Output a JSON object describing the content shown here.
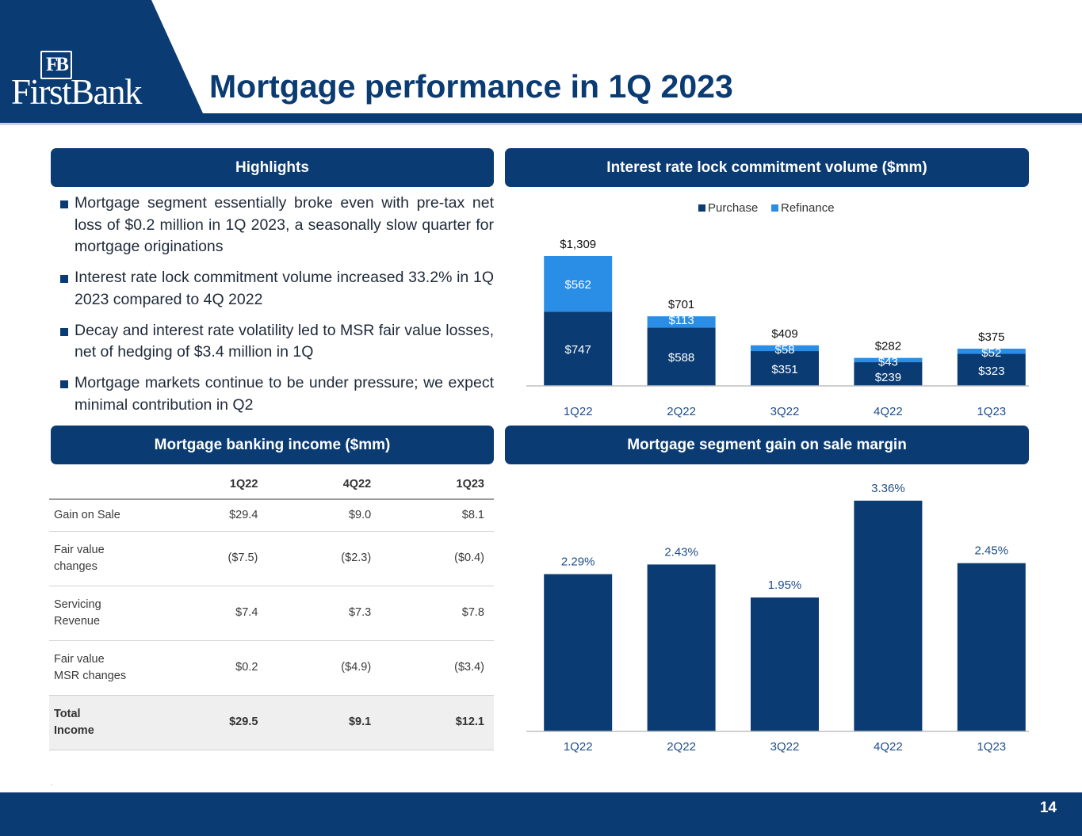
{
  "header": {
    "title": "Mortgage performance in 1Q 2023"
  },
  "logo": {
    "mark": "FB",
    "wordmark": "FirstBank"
  },
  "highlights": {
    "title": "Highlights",
    "bullets": [
      "Mortgage segment essentially broke even with pre-tax net loss of $0.2 million in 1Q 2023, a seasonally slow quarter for mortgage originations",
      "Interest rate lock commitment volume increased 33.2% in 1Q 2023 compared to 4Q 2022",
      "Decay and interest rate volatility led to MSR fair value losses, net of hedging of $3.4 million in 1Q",
      "Mortgage markets continue to be under pressure; we expect minimal contribution in Q2"
    ]
  },
  "income_table": {
    "title": "Mortgage banking income ($mm)",
    "columns": [
      "1Q22",
      "4Q22",
      "1Q23"
    ],
    "rows": [
      {
        "label": "Gain on Sale",
        "values": [
          "$29.4",
          "$9.0",
          "$8.1"
        ]
      },
      {
        "label_line1": "Fair value",
        "label_line2": "changes",
        "values": [
          "($7.5)",
          "($2.3)",
          "($0.4)"
        ]
      },
      {
        "label_line1": "Servicing",
        "label_line2": "Revenue",
        "values": [
          "$7.4",
          "$7.3",
          "$7.8"
        ]
      },
      {
        "label_line1": "Fair value",
        "label_line2": "MSR changes",
        "values": [
          "$0.2",
          "($4.9)",
          "($3.4)"
        ]
      },
      {
        "label_line1": "Total",
        "label_line2": "Income",
        "values": [
          "$29.5",
          "$9.1",
          "$12.1"
        ]
      }
    ]
  },
  "chart_data": [
    {
      "type": "bar",
      "stacked": true,
      "title": "Interest rate lock commitment volume ($mm)",
      "categories": [
        "1Q22",
        "2Q22",
        "3Q22",
        "4Q22",
        "1Q23"
      ],
      "series": [
        {
          "name": "Purchase",
          "values": [
            747,
            588,
            351,
            239,
            323
          ],
          "labels": [
            "$747",
            "$588",
            "$351",
            "$239",
            "$323"
          ],
          "color": "#0a3b73",
          "label_color": "#ffffff"
        },
        {
          "name": "Refinance",
          "values": [
            562,
            113,
            58,
            43,
            52
          ],
          "labels": [
            "$562",
            "$113",
            "$58",
            "$43",
            "$52"
          ],
          "color": "#2a8ee6",
          "label_color": "#ffffff"
        }
      ],
      "totals": [
        1309,
        701,
        409,
        282,
        375
      ],
      "total_labels": [
        "$1,309",
        "$701",
        "$409",
        "$282",
        "$375"
      ],
      "legend": "top-center",
      "ylim": [
        0,
        1400
      ],
      "grid": false
    },
    {
      "type": "bar",
      "title": "Mortgage segment gain on sale margin",
      "categories": [
        "1Q22",
        "2Q22",
        "3Q22",
        "4Q22",
        "1Q23"
      ],
      "values": [
        2.29,
        2.43,
        1.95,
        3.36,
        2.45
      ],
      "labels": [
        "2.29%",
        "2.43%",
        "1.95%",
        "3.36%",
        "2.45%"
      ],
      "color": "#0a3b73",
      "ylim": [
        0,
        3.45
      ],
      "grid": false
    }
  ],
  "footer": {
    "page_number": "14",
    "note": "."
  },
  "colors": {
    "navy": "#0a3b73",
    "refinance_blue": "#2a8ee6",
    "tick_blue": "#1f4e89"
  }
}
